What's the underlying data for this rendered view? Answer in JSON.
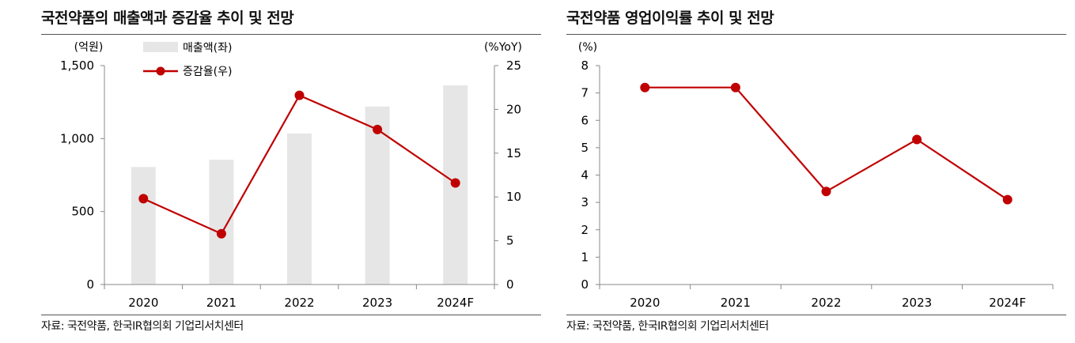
{
  "left": {
    "title": "국전약품의 매출액과 증감율 추이 및 전망",
    "source": "자료: 국전약품, 한국IR협의회 기업리서치센터"
  },
  "right": {
    "title": "국전약품 영업이익률 추이 및 전망",
    "source": "자료: 국전약품, 한국IR협의회 기업리서치센터"
  },
  "chart_data": [
    {
      "type": "bar",
      "categories": [
        "2020",
        "2021",
        "2022",
        "2023",
        "2024F"
      ],
      "series": [
        {
          "name": "매출액(좌)",
          "type": "bar",
          "axis": "left",
          "color": "#e6e6e6",
          "values": [
            805,
            855,
            1035,
            1220,
            1365
          ]
        },
        {
          "name": "증감율(우)",
          "type": "line",
          "axis": "right",
          "color": "#c00000",
          "values": [
            9.8,
            5.8,
            21.6,
            17.7,
            11.6
          ]
        }
      ],
      "ylabel_left": "(억원)",
      "ylabel_right": "(%YoY)",
      "ylim_left": [
        0,
        1500
      ],
      "yticks_left": [
        "0",
        "500",
        "1,000",
        "1,500"
      ],
      "ylim_right": [
        0,
        25
      ],
      "yticks_right": [
        "0",
        "5",
        "10",
        "15",
        "20",
        "25"
      ],
      "legend_position": "top-left",
      "grid": false
    },
    {
      "type": "line",
      "categories": [
        "2020",
        "2021",
        "2022",
        "2023",
        "2024F"
      ],
      "series": [
        {
          "color": "#c00000",
          "values": [
            7.2,
            7.2,
            3.4,
            5.3,
            3.1
          ]
        }
      ],
      "ylabel": "(%)",
      "ylim": [
        0,
        8
      ],
      "yticks": [
        "0",
        "1",
        "2",
        "3",
        "4",
        "5",
        "6",
        "7",
        "8"
      ],
      "grid": false
    }
  ]
}
